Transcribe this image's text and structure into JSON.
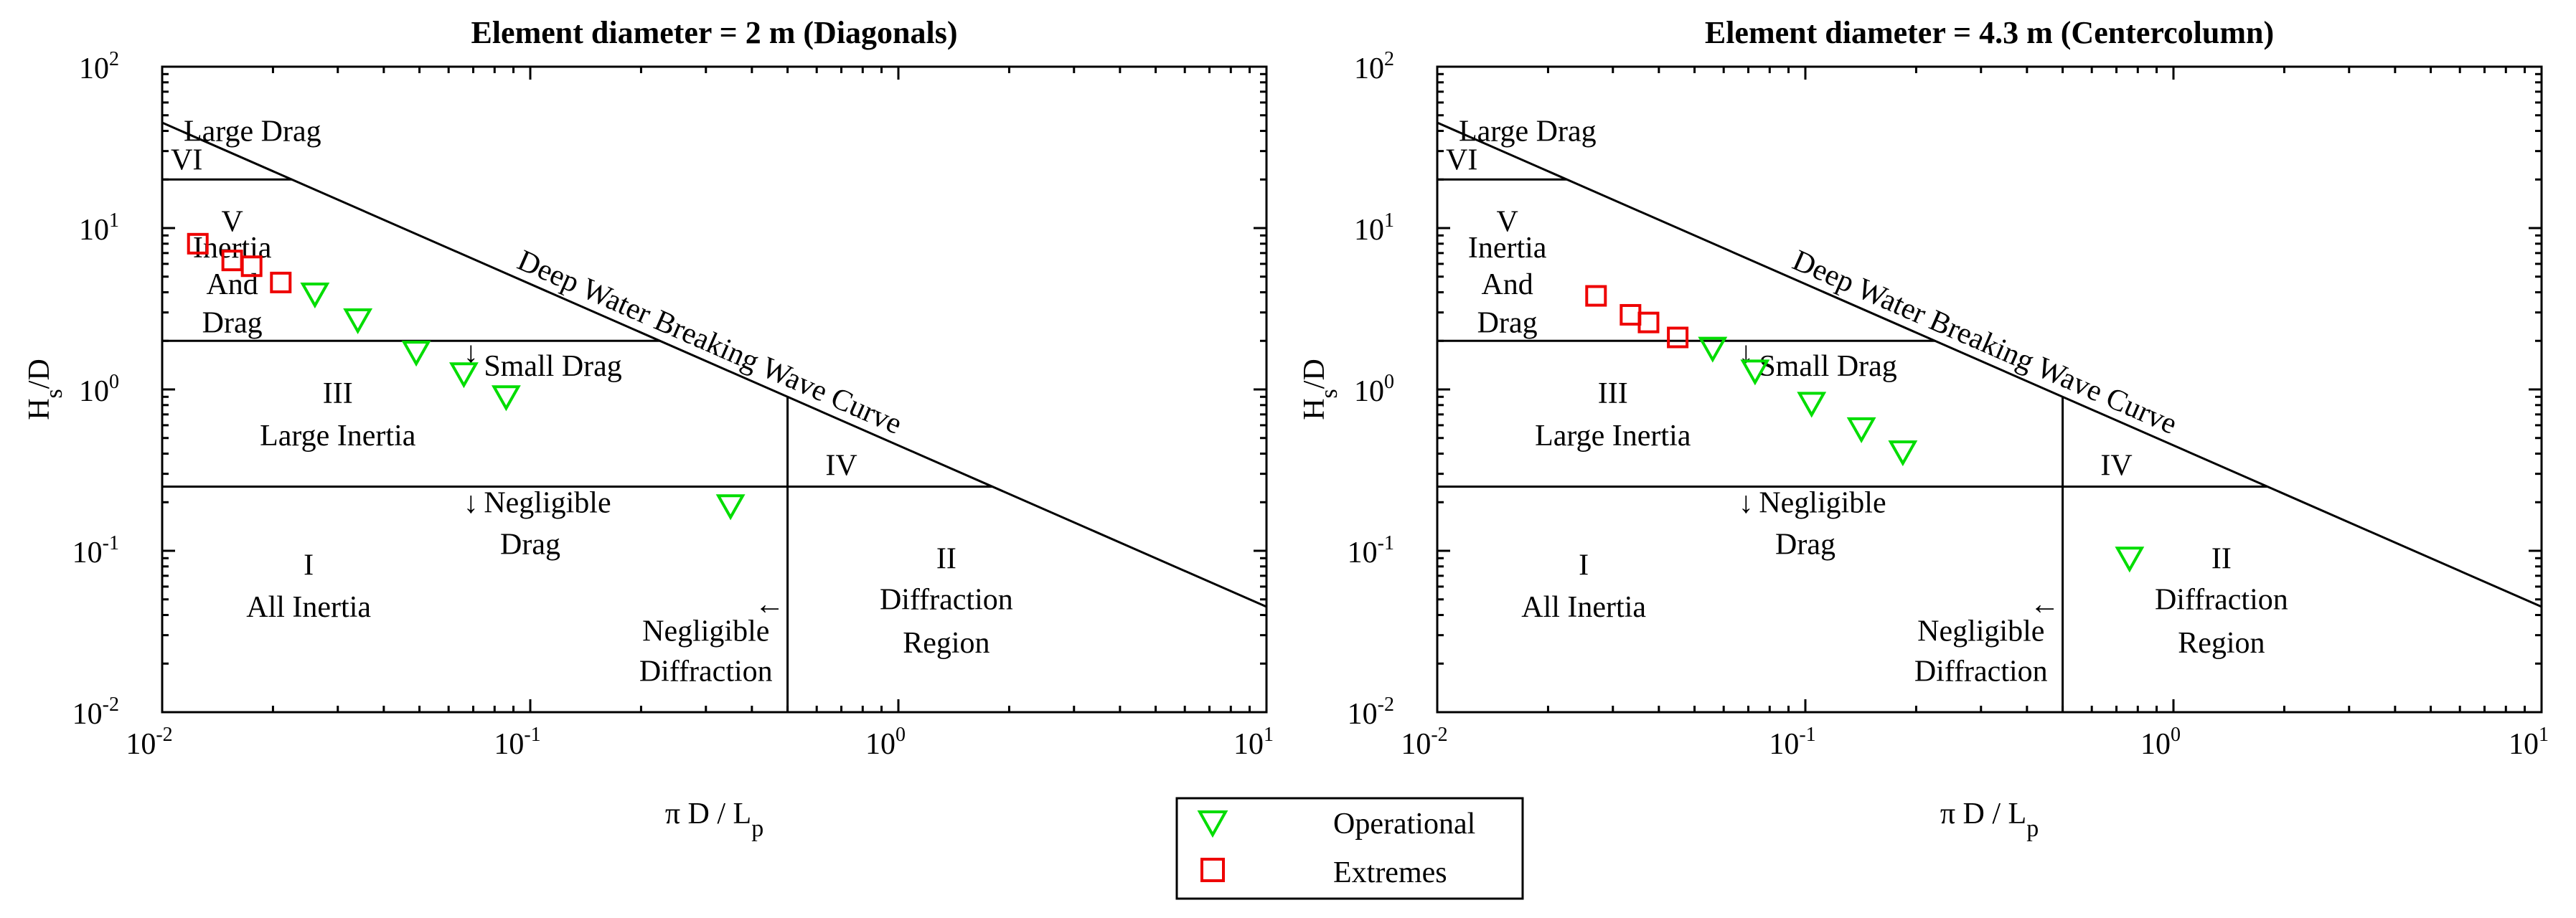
{
  "colors": {
    "operational": "#00dd00",
    "extremes": "#ee0000",
    "lines": "#000000"
  },
  "legend": {
    "operational": "Operational",
    "extremes": "Extremes"
  },
  "chart_data": [
    {
      "type": "scatter",
      "title": "Element diameter = 2 m (Diagonals)",
      "xlabel_main": "π D / L",
      "xlabel_sub": "p",
      "ylabel_main": "H",
      "ylabel_sub": "s",
      "ylabel_tail": "/D",
      "xscale": "log",
      "yscale": "log",
      "xlim": [
        0.01,
        10
      ],
      "ylim": [
        0.01,
        100
      ],
      "xticks": [
        {
          "base": "10",
          "exp": "-2"
        },
        {
          "base": "10",
          "exp": "-1"
        },
        {
          "base": "10",
          "exp": "0"
        },
        {
          "base": "10",
          "exp": "1"
        }
      ],
      "yticks": [
        {
          "base": "10",
          "exp": "-2"
        },
        {
          "base": "10",
          "exp": "-1"
        },
        {
          "base": "10",
          "exp": "0"
        },
        {
          "base": "10",
          "exp": "1"
        },
        {
          "base": "10",
          "exp": "2"
        }
      ],
      "regions": {
        "large_drag": "Large Drag",
        "vi": "VI",
        "v": "V",
        "inertia": "Inertia",
        "and": "And",
        "drag": "Drag",
        "small_drag": "Small Drag",
        "small_drag_arrow": "↓",
        "iii": "III",
        "large_inertia": "Large Inertia",
        "iv": "IV",
        "negligible": "Negligible",
        "neg_drag_arrow": "↓",
        "i": "I",
        "all_inertia": "All Inertia",
        "ii": "II",
        "diffraction": "Diffraction",
        "region": "Region",
        "negligible2": "Negligible",
        "diffraction2": "Diffraction",
        "neg_diff_arrow": "←",
        "curve_label": "Deep Water Breaking Wave Curve"
      },
      "series": [
        {
          "name": "Operational",
          "marker": "triangle-down",
          "points": [
            [
              0.026,
              3.9
            ],
            [
              0.034,
              2.7
            ],
            [
              0.049,
              1.7
            ],
            [
              0.066,
              1.25
            ],
            [
              0.086,
              0.9
            ],
            [
              0.35,
              0.19
            ]
          ]
        },
        {
          "name": "Extremes",
          "marker": "square",
          "points": [
            [
              0.0125,
              8.0
            ],
            [
              0.0155,
              6.3
            ],
            [
              0.0175,
              5.8
            ],
            [
              0.021,
              4.6
            ]
          ]
        }
      ]
    },
    {
      "type": "scatter",
      "title": "Element diameter = 4.3 m (Centercolumn)",
      "xlabel_main": "π D / L",
      "xlabel_sub": "p",
      "ylabel_main": "H",
      "ylabel_sub": "s",
      "ylabel_tail": "/D",
      "xscale": "log",
      "yscale": "log",
      "xlim": [
        0.01,
        10
      ],
      "ylim": [
        0.01,
        100
      ],
      "xticks": [
        {
          "base": "10",
          "exp": "-2"
        },
        {
          "base": "10",
          "exp": "-1"
        },
        {
          "base": "10",
          "exp": "0"
        },
        {
          "base": "10",
          "exp": "1"
        }
      ],
      "yticks": [
        {
          "base": "10",
          "exp": "-2"
        },
        {
          "base": "10",
          "exp": "-1"
        },
        {
          "base": "10",
          "exp": "0"
        },
        {
          "base": "10",
          "exp": "1"
        },
        {
          "base": "10",
          "exp": "2"
        }
      ],
      "regions": {
        "large_drag": "Large Drag",
        "vi": "VI",
        "v": "V",
        "inertia": "Inertia",
        "and": "And",
        "drag": "Drag",
        "small_drag": "Small Drag",
        "small_drag_arrow": "↓",
        "iii": "III",
        "large_inertia": "Large Inertia",
        "iv": "IV",
        "negligible": "Negligible",
        "neg_drag_arrow": "↓",
        "i": "I",
        "all_inertia": "All Inertia",
        "ii": "II",
        "diffraction": "Diffraction",
        "region": "Region",
        "negligible2": "Negligible",
        "diffraction2": "Diffraction",
        "neg_diff_arrow": "←",
        "curve_label": "Deep Water Breaking Wave Curve"
      },
      "series": [
        {
          "name": "Operational",
          "marker": "triangle-down",
          "points": [
            [
              0.056,
              1.8
            ],
            [
              0.073,
              1.3
            ],
            [
              0.104,
              0.82
            ],
            [
              0.142,
              0.57
            ],
            [
              0.184,
              0.41
            ],
            [
              0.76,
              0.09
            ]
          ]
        },
        {
          "name": "Extremes",
          "marker": "square",
          "points": [
            [
              0.027,
              3.8
            ],
            [
              0.0335,
              2.9
            ],
            [
              0.0375,
              2.6
            ],
            [
              0.045,
              2.1
            ]
          ]
        }
      ]
    }
  ]
}
